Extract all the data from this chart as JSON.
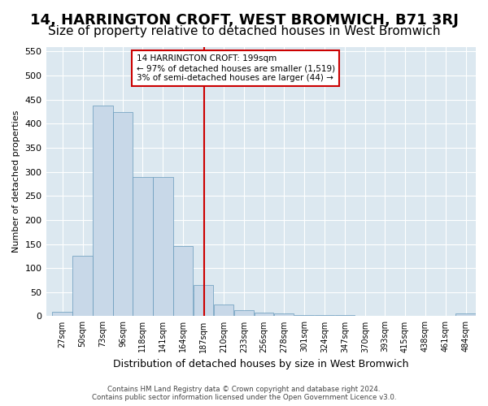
{
  "title": "14, HARRINGTON CROFT, WEST BROMWICH, B71 3RJ",
  "subtitle": "Size of property relative to detached houses in West Bromwich",
  "xlabel": "Distribution of detached houses by size in West Bromwich",
  "ylabel": "Number of detached properties",
  "footer_line1": "Contains HM Land Registry data © Crown copyright and database right 2024.",
  "footer_line2": "Contains public sector information licensed under the Open Government Licence v3.0.",
  "annotation_title": "14 HARRINGTON CROFT: 199sqm",
  "annotation_line1": "← 97% of detached houses are smaller (1,519)",
  "annotation_line2": "3% of semi-detached houses are larger (44) →",
  "categories": [
    "27sqm",
    "50sqm",
    "73sqm",
    "96sqm",
    "118sqm",
    "141sqm",
    "164sqm",
    "187sqm",
    "210sqm",
    "233sqm",
    "256sqm",
    "278sqm",
    "301sqm",
    "324sqm",
    "347sqm",
    "370sqm",
    "393sqm",
    "415sqm",
    "438sqm",
    "461sqm",
    "484sqm"
  ],
  "bar_left_edges": [
    27,
    50,
    73,
    96,
    118,
    141,
    164,
    187,
    210,
    233,
    256,
    278,
    301,
    324,
    347,
    370,
    393,
    415,
    438,
    461,
    484
  ],
  "bar_widths": [
    23,
    23,
    23,
    22,
    23,
    23,
    23,
    23,
    23,
    23,
    22,
    23,
    23,
    23,
    23,
    23,
    22,
    23,
    23,
    23,
    23
  ],
  "bar_heights": [
    10,
    125,
    438,
    425,
    290,
    290,
    145,
    65,
    25,
    13,
    8,
    5,
    3,
    2,
    2,
    1,
    1,
    0,
    1,
    0,
    5
  ],
  "bar_color": "#c8d8e8",
  "bar_edge_color": "#6699bb",
  "vline_color": "#cc0000",
  "vline_x": 199,
  "ylim": [
    0,
    560
  ],
  "xlim": [
    20,
    507
  ],
  "yticks": [
    0,
    50,
    100,
    150,
    200,
    250,
    300,
    350,
    400,
    450,
    500,
    550
  ],
  "background_color": "#dce8f0",
  "title_fontsize": 13,
  "subtitle_fontsize": 11,
  "annotation_box_color": "#ffffff",
  "annotation_box_edge": "#cc0000"
}
